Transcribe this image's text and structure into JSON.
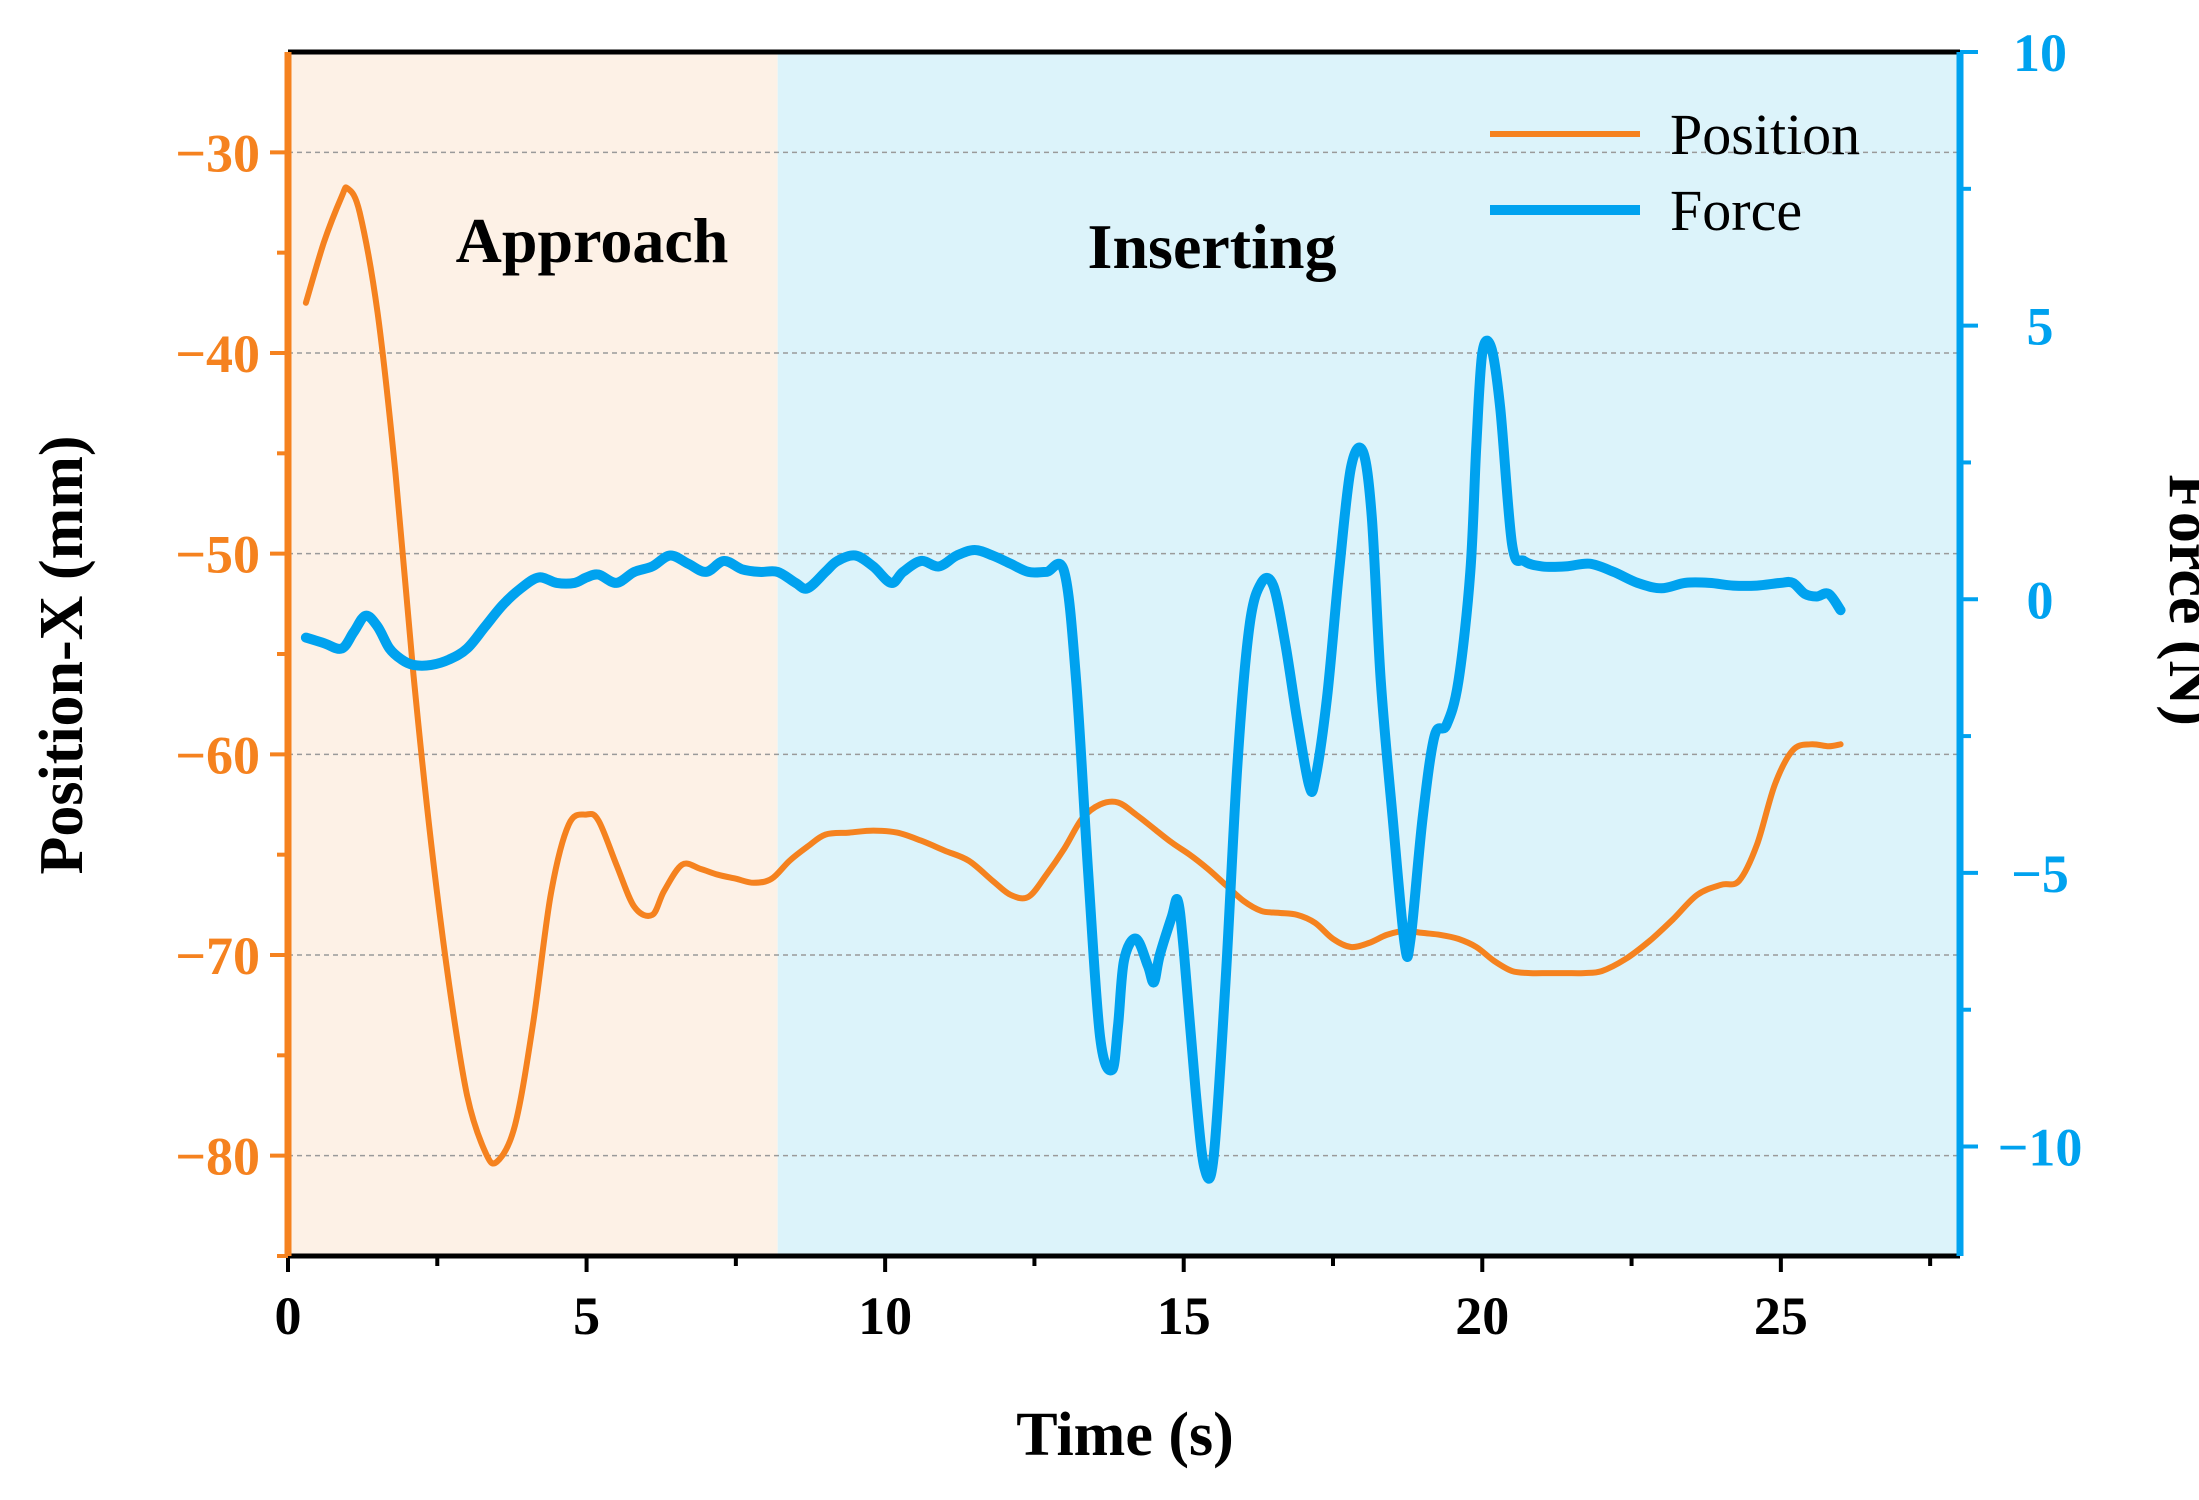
{
  "chart_data": {
    "type": "line",
    "xlabel": "Time (s)",
    "ylabel_left": "Position-X (mm)",
    "ylabel_right": "Force (N)",
    "xlim": [
      0,
      28
    ],
    "ylim_left": [
      -85,
      -25
    ],
    "ylim_right": [
      -12,
      10
    ],
    "x_ticks": [
      0,
      5,
      10,
      15,
      20,
      25
    ],
    "x_tick_labels": [
      "0",
      "5",
      "10",
      "15",
      "20",
      "25"
    ],
    "left_ticks": [
      -30,
      -40,
      -50,
      -60,
      -70,
      -80
    ],
    "left_tick_labels": [
      "−30",
      "−40",
      "−50",
      "−60",
      "−70",
      "−80"
    ],
    "right_ticks": [
      10,
      5,
      0,
      -5,
      -10
    ],
    "right_tick_labels": [
      "10",
      "5",
      "0",
      "−5",
      "−10"
    ],
    "grid": "dashed-horizontal",
    "regions": [
      {
        "label": "Approach",
        "x_start": 0,
        "x_end": 8.2,
        "color": "#fdf1e6"
      },
      {
        "label": "Inserting",
        "x_start": 8.2,
        "x_end": 28,
        "color": "#dcf3fa"
      }
    ],
    "legend": {
      "placement": "top-right",
      "entries": [
        "Position",
        "Force"
      ]
    },
    "colors": {
      "position": "#f5821f",
      "force": "#00a2ef",
      "grid": "#9a9a9a",
      "axis": "#000000"
    },
    "series": [
      {
        "name": "Position",
        "axis": "left",
        "x": [
          0.3,
          0.6,
          0.9,
          1.0,
          1.2,
          1.5,
          1.8,
          2.1,
          2.4,
          2.7,
          3.0,
          3.3,
          3.5,
          3.8,
          4.1,
          4.4,
          4.7,
          5.0,
          5.2,
          5.5,
          5.8,
          6.1,
          6.3,
          6.6,
          6.9,
          7.2,
          7.5,
          7.8,
          8.1,
          8.4,
          8.7,
          9.0,
          9.4,
          9.8,
          10.2,
          10.6,
          11.0,
          11.4,
          11.8,
          12.1,
          12.4,
          12.7,
          13.0,
          13.3,
          13.6,
          13.9,
          14.2,
          14.5,
          14.8,
          15.1,
          15.4,
          15.7,
          16.0,
          16.3,
          16.6,
          16.9,
          17.2,
          17.5,
          17.8,
          18.1,
          18.4,
          18.7,
          19.0,
          19.3,
          19.6,
          19.9,
          20.2,
          20.5,
          20.8,
          21.1,
          21.4,
          21.7,
          22.0,
          22.4,
          22.8,
          23.2,
          23.6,
          24.0,
          24.3,
          24.6,
          24.9,
          25.2,
          25.5,
          25.8,
          26.0
        ],
        "values": [
          -37.5,
          -34.5,
          -32.2,
          -31.8,
          -33.0,
          -38.0,
          -46.0,
          -56.0,
          -64.5,
          -71.5,
          -77.0,
          -79.8,
          -80.3,
          -78.5,
          -73.5,
          -67.0,
          -63.5,
          -63.0,
          -63.3,
          -65.5,
          -67.6,
          -68.0,
          -66.8,
          -65.5,
          -65.7,
          -66.0,
          -66.2,
          -66.4,
          -66.2,
          -65.3,
          -64.6,
          -64.0,
          -63.9,
          -63.8,
          -63.9,
          -64.3,
          -64.8,
          -65.3,
          -66.3,
          -67.0,
          -67.1,
          -66.0,
          -64.7,
          -63.2,
          -62.5,
          -62.4,
          -63.0,
          -63.7,
          -64.4,
          -65.0,
          -65.7,
          -66.5,
          -67.3,
          -67.8,
          -67.9,
          -68.0,
          -68.4,
          -69.2,
          -69.6,
          -69.4,
          -69.0,
          -68.8,
          -68.9,
          -69.0,
          -69.2,
          -69.6,
          -70.3,
          -70.8,
          -70.9,
          -70.9,
          -70.9,
          -70.9,
          -70.8,
          -70.2,
          -69.3,
          -68.2,
          -67.0,
          -66.5,
          -66.3,
          -64.5,
          -61.5,
          -59.8,
          -59.5,
          -59.6,
          -59.5
        ]
      },
      {
        "name": "Force",
        "axis": "right",
        "x": [
          0.3,
          0.6,
          0.9,
          1.1,
          1.3,
          1.5,
          1.7,
          1.9,
          2.1,
          2.4,
          2.7,
          3.0,
          3.3,
          3.6,
          3.9,
          4.2,
          4.5,
          4.8,
          5.0,
          5.2,
          5.5,
          5.8,
          6.1,
          6.4,
          6.7,
          7.0,
          7.3,
          7.6,
          7.9,
          8.2,
          8.5,
          8.7,
          9.0,
          9.2,
          9.5,
          9.8,
          10.1,
          10.3,
          10.6,
          10.9,
          11.2,
          11.5,
          11.8,
          12.1,
          12.4,
          12.7,
          13.0,
          13.2,
          13.4,
          13.6,
          13.8,
          13.9,
          14.0,
          14.2,
          14.4,
          14.5,
          14.6,
          14.8,
          14.9,
          15.0,
          15.2,
          15.35,
          15.5,
          15.7,
          15.9,
          16.1,
          16.3,
          16.5,
          16.7,
          16.9,
          17.1,
          17.2,
          17.4,
          17.6,
          17.8,
          18.0,
          18.15,
          18.3,
          18.5,
          18.7,
          18.8,
          19.0,
          19.2,
          19.4,
          19.6,
          19.8,
          19.9,
          20.0,
          20.15,
          20.3,
          20.5,
          20.7,
          21.0,
          21.4,
          21.8,
          22.2,
          22.6,
          23.0,
          23.4,
          23.8,
          24.2,
          24.6,
          25.0,
          25.2,
          25.4,
          25.6,
          25.8,
          26.0
        ],
        "values": [
          -0.7,
          -0.8,
          -0.9,
          -0.6,
          -0.3,
          -0.5,
          -0.9,
          -1.1,
          -1.2,
          -1.2,
          -1.1,
          -0.9,
          -0.5,
          -0.1,
          0.2,
          0.4,
          0.3,
          0.3,
          0.4,
          0.45,
          0.3,
          0.5,
          0.6,
          0.8,
          0.65,
          0.5,
          0.7,
          0.55,
          0.5,
          0.5,
          0.3,
          0.2,
          0.5,
          0.7,
          0.8,
          0.6,
          0.3,
          0.5,
          0.7,
          0.6,
          0.8,
          0.9,
          0.8,
          0.65,
          0.5,
          0.5,
          0.5,
          -1.5,
          -5.0,
          -8.0,
          -8.6,
          -7.8,
          -6.6,
          -6.2,
          -6.7,
          -7.0,
          -6.5,
          -5.8,
          -5.5,
          -6.4,
          -9.0,
          -10.4,
          -10.2,
          -7.0,
          -3.0,
          -0.5,
          0.3,
          0.25,
          -0.8,
          -2.2,
          -3.4,
          -3.3,
          -1.8,
          0.5,
          2.4,
          2.7,
          1.5,
          -1.5,
          -4.0,
          -6.3,
          -6.2,
          -4.0,
          -2.5,
          -2.3,
          -1.5,
          0.5,
          2.8,
          4.5,
          4.6,
          3.5,
          1.0,
          0.7,
          0.6,
          0.6,
          0.65,
          0.5,
          0.3,
          0.2,
          0.3,
          0.3,
          0.25,
          0.25,
          0.3,
          0.3,
          0.1,
          0.05,
          0.1,
          -0.2
        ]
      }
    ]
  }
}
